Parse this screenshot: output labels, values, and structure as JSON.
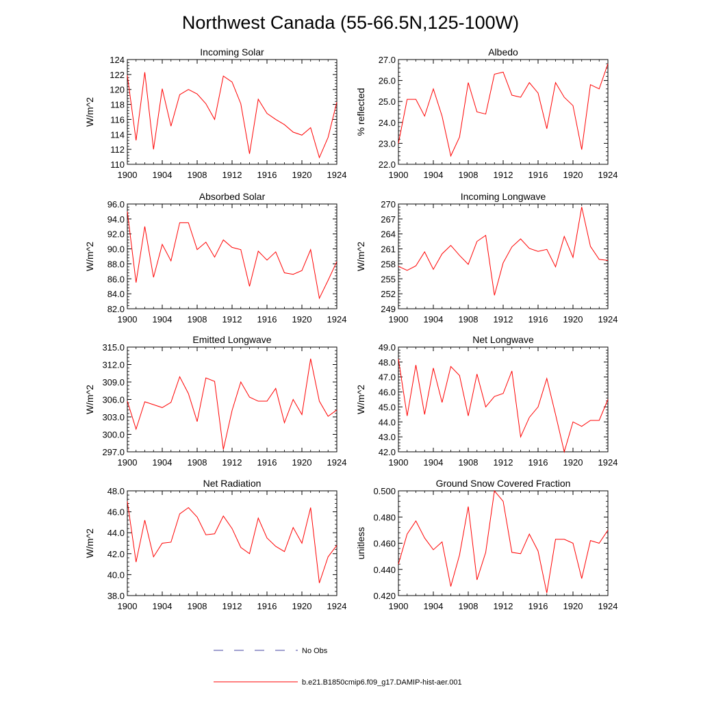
{
  "title": "Northwest Canada (55-66.5N,125-100W)",
  "colors": {
    "model": "#ff0000",
    "obs": "#4040a0",
    "axis": "#000000"
  },
  "legend": [
    {
      "label": "No Obs",
      "style": "dashed",
      "color": "#4040a0"
    },
    {
      "label": "b.e21.B1850cmip6.f09_g17.DAMIP-hist-aer.001",
      "style": "solid",
      "color": "#ff0000"
    }
  ],
  "chart_data": [
    {
      "type": "line",
      "title": "Incoming Solar",
      "ylabel": "W/m^2",
      "xlim": [
        1900,
        1924
      ],
      "ylim": [
        110,
        124
      ],
      "yticks": [
        110,
        112,
        114,
        116,
        118,
        120,
        122,
        124
      ],
      "ydec": 0,
      "xticks": [
        1900,
        1904,
        1908,
        1912,
        1916,
        1920,
        1924
      ],
      "series": [
        {
          "x": [
            1900,
            1901,
            1902,
            1903,
            1904,
            1905,
            1906,
            1907,
            1908,
            1909,
            1910,
            1911,
            1912,
            1913,
            1914,
            1915,
            1916,
            1917,
            1918,
            1919,
            1920,
            1921,
            1922,
            1923,
            1924
          ],
          "values": [
            121.9,
            113.2,
            122.3,
            112.0,
            120.1,
            115.1,
            119.3,
            120.0,
            119.4,
            118.1,
            116.0,
            121.8,
            121.0,
            118.1,
            111.4,
            118.7,
            116.8,
            116.0,
            115.3,
            114.3,
            113.9,
            114.9,
            110.9,
            113.6,
            118.3
          ]
        }
      ]
    },
    {
      "type": "line",
      "title": "Albedo",
      "ylabel": "% reflected",
      "xlim": [
        1900,
        1924
      ],
      "ylim": [
        22.0,
        27.0
      ],
      "yticks": [
        22,
        23,
        24,
        25,
        26,
        27
      ],
      "ydec": 1,
      "xticks": [
        1900,
        1904,
        1908,
        1912,
        1916,
        1920,
        1924
      ],
      "series": [
        {
          "x": [
            1900,
            1901,
            1902,
            1903,
            1904,
            1905,
            1906,
            1907,
            1908,
            1909,
            1910,
            1911,
            1912,
            1913,
            1914,
            1915,
            1916,
            1917,
            1918,
            1919,
            1920,
            1921,
            1922,
            1923,
            1924
          ],
          "values": [
            23.0,
            25.1,
            25.1,
            24.3,
            25.6,
            24.3,
            22.4,
            23.3,
            25.9,
            24.5,
            24.4,
            26.3,
            26.4,
            25.3,
            25.2,
            25.9,
            25.4,
            23.7,
            25.9,
            25.2,
            24.8,
            22.7,
            25.8,
            25.6,
            26.8
          ]
        }
      ]
    },
    {
      "type": "line",
      "title": "Absorbed Solar",
      "ylabel": "W/m^2",
      "xlim": [
        1900,
        1924
      ],
      "ylim": [
        82.0,
        96.0
      ],
      "yticks": [
        82,
        84,
        86,
        88,
        90,
        92,
        94,
        96
      ],
      "ydec": 1,
      "xticks": [
        1900,
        1904,
        1908,
        1912,
        1916,
        1920,
        1924
      ],
      "series": [
        {
          "x": [
            1900,
            1901,
            1902,
            1903,
            1904,
            1905,
            1906,
            1907,
            1908,
            1909,
            1910,
            1911,
            1912,
            1913,
            1914,
            1915,
            1916,
            1917,
            1918,
            1919,
            1920,
            1921,
            1922,
            1923,
            1924
          ],
          "values": [
            95.0,
            85.5,
            93.0,
            86.2,
            90.6,
            88.4,
            93.5,
            93.5,
            89.9,
            90.9,
            88.9,
            91.2,
            90.2,
            89.9,
            85.0,
            89.7,
            88.5,
            89.6,
            86.8,
            86.6,
            87.1,
            89.9,
            83.4,
            85.8,
            88.3
          ]
        }
      ]
    },
    {
      "type": "line",
      "title": "Incoming Longwave",
      "ylabel": "W/m^2",
      "xlim": [
        1900,
        1924
      ],
      "ylim": [
        249,
        270
      ],
      "yticks": [
        249,
        252,
        255,
        258,
        261,
        264,
        267,
        270
      ],
      "ydec": 0,
      "xticks": [
        1900,
        1904,
        1908,
        1912,
        1916,
        1920,
        1924
      ],
      "series": [
        {
          "x": [
            1900,
            1901,
            1902,
            1903,
            1904,
            1905,
            1906,
            1907,
            1908,
            1909,
            1910,
            1911,
            1912,
            1913,
            1914,
            1915,
            1916,
            1917,
            1918,
            1919,
            1920,
            1921,
            1922,
            1923,
            1924
          ],
          "values": [
            257.5,
            256.7,
            257.6,
            260.4,
            256.9,
            260.0,
            261.7,
            259.7,
            257.9,
            262.5,
            263.7,
            251.7,
            258.2,
            261.4,
            263.0,
            261.1,
            260.5,
            260.9,
            257.4,
            263.5,
            259.3,
            269.4,
            261.5,
            258.9,
            258.7
          ]
        }
      ]
    },
    {
      "type": "line",
      "title": "Emitted Longwave",
      "ylabel": "W/m^2",
      "xlim": [
        1900,
        1924
      ],
      "ylim": [
        297.0,
        315.0
      ],
      "yticks": [
        297,
        300,
        303,
        306,
        309,
        312,
        315
      ],
      "ydec": 1,
      "xticks": [
        1900,
        1904,
        1908,
        1912,
        1916,
        1920,
        1924
      ],
      "series": [
        {
          "x": [
            1900,
            1901,
            1902,
            1903,
            1904,
            1905,
            1906,
            1907,
            1908,
            1909,
            1910,
            1911,
            1912,
            1913,
            1914,
            1915,
            1916,
            1917,
            1918,
            1919,
            1920,
            1921,
            1922,
            1923,
            1924
          ],
          "values": [
            305.7,
            300.9,
            305.6,
            305.1,
            304.6,
            305.5,
            309.9,
            307.0,
            302.2,
            309.7,
            309.1,
            297.4,
            304.1,
            309.0,
            306.4,
            305.7,
            305.7,
            307.9,
            302.0,
            306.0,
            303.4,
            313.0,
            305.7,
            303.1,
            304.2
          ]
        }
      ]
    },
    {
      "type": "line",
      "title": "Net Longwave",
      "ylabel": "W/m^2",
      "xlim": [
        1900,
        1924
      ],
      "ylim": [
        42.0,
        49.0
      ],
      "yticks": [
        42,
        43,
        44,
        45,
        46,
        47,
        48,
        49
      ],
      "ydec": 1,
      "xticks": [
        1900,
        1904,
        1908,
        1912,
        1916,
        1920,
        1924
      ],
      "series": [
        {
          "x": [
            1900,
            1901,
            1902,
            1903,
            1904,
            1905,
            1906,
            1907,
            1908,
            1909,
            1910,
            1911,
            1912,
            1913,
            1914,
            1915,
            1916,
            1917,
            1918,
            1919,
            1920,
            1921,
            1922,
            1923,
            1924
          ],
          "values": [
            48.2,
            44.4,
            47.8,
            44.5,
            47.6,
            45.3,
            47.7,
            47.1,
            44.4,
            47.2,
            45.0,
            45.7,
            45.9,
            47.4,
            43.0,
            44.3,
            45.0,
            46.9,
            44.5,
            42.0,
            44.0,
            43.7,
            44.1,
            44.1,
            45.5
          ]
        }
      ]
    },
    {
      "type": "line",
      "title": "Net Radiation",
      "ylabel": "W/m^2",
      "xlim": [
        1900,
        1924
      ],
      "ylim": [
        38.0,
        48.0
      ],
      "yticks": [
        38,
        40,
        42,
        44,
        46,
        48
      ],
      "ydec": 1,
      "xticks": [
        1900,
        1904,
        1908,
        1912,
        1916,
        1920,
        1924
      ],
      "series": [
        {
          "x": [
            1900,
            1901,
            1902,
            1903,
            1904,
            1905,
            1906,
            1907,
            1908,
            1909,
            1910,
            1911,
            1912,
            1913,
            1914,
            1915,
            1916,
            1917,
            1918,
            1919,
            1920,
            1921,
            1922,
            1923,
            1924
          ],
          "values": [
            47.0,
            41.2,
            45.2,
            41.7,
            43.0,
            43.1,
            45.8,
            46.4,
            45.5,
            43.8,
            43.9,
            45.6,
            44.4,
            42.6,
            42.0,
            45.4,
            43.5,
            42.7,
            42.2,
            44.5,
            43.0,
            46.4,
            39.2,
            41.7,
            42.8
          ]
        }
      ]
    },
    {
      "type": "line",
      "title": "Ground Snow Covered Fraction",
      "ylabel": "unitless",
      "xlim": [
        1900,
        1924
      ],
      "ylim": [
        0.42,
        0.5
      ],
      "yticks": [
        0.42,
        0.44,
        0.46,
        0.48,
        0.5
      ],
      "ydec": 3,
      "xticks": [
        1900,
        1904,
        1908,
        1912,
        1916,
        1920,
        1924
      ],
      "series": [
        {
          "x": [
            1900,
            1901,
            1902,
            1903,
            1904,
            1905,
            1906,
            1907,
            1908,
            1909,
            1910,
            1911,
            1912,
            1913,
            1914,
            1915,
            1916,
            1917,
            1918,
            1919,
            1920,
            1921,
            1922,
            1923,
            1924
          ],
          "values": [
            0.444,
            0.467,
            0.477,
            0.464,
            0.455,
            0.461,
            0.427,
            0.451,
            0.488,
            0.432,
            0.453,
            0.5,
            0.492,
            0.453,
            0.452,
            0.467,
            0.454,
            0.422,
            0.463,
            0.463,
            0.46,
            0.433,
            0.462,
            0.46,
            0.47
          ]
        }
      ]
    }
  ]
}
